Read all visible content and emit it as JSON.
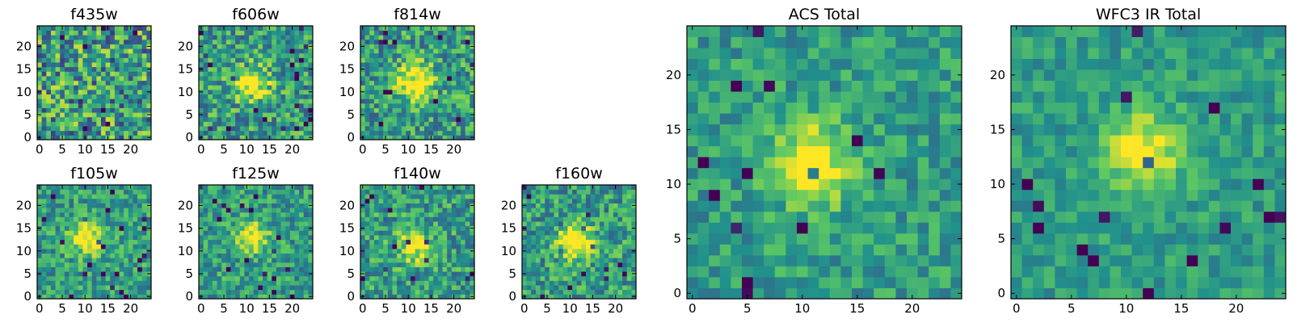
{
  "chart_data": [
    {
      "type": "heatmap",
      "title": "f435w",
      "source": "ACS",
      "xlim": [
        0,
        25
      ],
      "ylim": [
        0,
        25
      ],
      "xticks": [
        0,
        5,
        10,
        15,
        20
      ],
      "yticks": [
        0,
        5,
        10,
        15,
        20
      ],
      "tick_labels_x": [
        "0",
        "5",
        "10",
        "15",
        "20"
      ],
      "tick_labels_y": [
        "0",
        "5",
        "10",
        "15",
        "20"
      ],
      "colormap": "viridis",
      "source_center": [
        11,
        13
      ],
      "peak_level": 0.0,
      "noise_level": 0.75,
      "seed": 11
    },
    {
      "type": "heatmap",
      "title": "f606w",
      "source": "ACS",
      "xlim": [
        0,
        25
      ],
      "ylim": [
        0,
        25
      ],
      "xticks": [
        0,
        5,
        10,
        15,
        20
      ],
      "yticks": [
        0,
        5,
        10,
        15,
        20
      ],
      "tick_labels_x": [
        "0",
        "5",
        "10",
        "15",
        "20"
      ],
      "tick_labels_y": [
        "0",
        "5",
        "10",
        "15",
        "20"
      ],
      "colormap": "viridis",
      "source_center": [
        11.5,
        12.5
      ],
      "peak_level": 0.55,
      "noise_level": 0.55,
      "seed": 22
    },
    {
      "type": "heatmap",
      "title": "f814w",
      "source": "ACS",
      "xlim": [
        0,
        25
      ],
      "ylim": [
        0,
        25
      ],
      "xticks": [
        0,
        5,
        10,
        15,
        20
      ],
      "yticks": [
        0,
        5,
        10,
        15,
        20
      ],
      "tick_labels_x": [
        "0",
        "5",
        "10",
        "15",
        "20"
      ],
      "tick_labels_y": [
        "0",
        "5",
        "10",
        "15",
        "20"
      ],
      "colormap": "viridis",
      "source_center": [
        12,
        13
      ],
      "peak_level": 0.65,
      "noise_level": 0.55,
      "seed": 33
    },
    {
      "type": "heatmap",
      "title": "f105w",
      "source": "WFC3 IR",
      "xlim": [
        0,
        25
      ],
      "ylim": [
        0,
        25
      ],
      "xticks": [
        0,
        5,
        10,
        15,
        20
      ],
      "yticks": [
        0,
        5,
        10,
        15,
        20
      ],
      "tick_labels_x": [
        "0",
        "5",
        "10",
        "15",
        "20"
      ],
      "tick_labels_y": [
        "0",
        "5",
        "10",
        "15",
        "20"
      ],
      "colormap": "viridis",
      "source_center": [
        11,
        13.5
      ],
      "peak_level": 0.5,
      "noise_level": 0.45,
      "seed": 44
    },
    {
      "type": "heatmap",
      "title": "f125w",
      "source": "WFC3 IR",
      "xlim": [
        0,
        25
      ],
      "ylim": [
        0,
        25
      ],
      "xticks": [
        0,
        5,
        10,
        15,
        20
      ],
      "yticks": [
        0,
        5,
        10,
        15,
        20
      ],
      "tick_labels_x": [
        "0",
        "5",
        "10",
        "15",
        "20"
      ],
      "tick_labels_y": [
        "0",
        "5",
        "10",
        "15",
        "20"
      ],
      "colormap": "viridis",
      "source_center": [
        11.5,
        13.5
      ],
      "peak_level": 0.45,
      "noise_level": 0.45,
      "seed": 55
    },
    {
      "type": "heatmap",
      "title": "f140w",
      "source": "WFC3 IR",
      "xlim": [
        0,
        25
      ],
      "ylim": [
        0,
        25
      ],
      "xticks": [
        0,
        5,
        10,
        15,
        20
      ],
      "yticks": [
        0,
        5,
        10,
        15,
        20
      ],
      "tick_labels_x": [
        "0",
        "5",
        "10",
        "15",
        "20"
      ],
      "tick_labels_y": [
        "0",
        "5",
        "10",
        "15",
        "20"
      ],
      "colormap": "viridis",
      "source_center": [
        12,
        11.5
      ],
      "peak_level": 0.4,
      "noise_level": 0.5,
      "seed": 66
    },
    {
      "type": "heatmap",
      "title": "f160w",
      "source": "WFC3 IR",
      "xlim": [
        0,
        25
      ],
      "ylim": [
        0,
        25
      ],
      "xticks": [
        0,
        5,
        10,
        15,
        20
      ],
      "yticks": [
        0,
        5,
        10,
        15,
        20
      ],
      "tick_labels_x": [
        "0",
        "5",
        "10",
        "15",
        "20"
      ],
      "tick_labels_y": [
        "0",
        "5",
        "10",
        "15",
        "20"
      ],
      "colormap": "viridis",
      "source_center": [
        11.5,
        12.5
      ],
      "peak_level": 0.6,
      "noise_level": 0.5,
      "seed": 77
    },
    {
      "type": "heatmap",
      "title": "ACS Total",
      "source": "ACS",
      "xlim": [
        0,
        25
      ],
      "ylim": [
        0,
        25
      ],
      "xticks": [
        0,
        5,
        10,
        15,
        20
      ],
      "yticks": [
        0,
        5,
        10,
        15,
        20
      ],
      "tick_labels_x": [
        "0",
        "5",
        "10",
        "15",
        "20"
      ],
      "tick_labels_y": [
        "0",
        "5",
        "10",
        "15",
        "20"
      ],
      "colormap": "viridis",
      "source_center": [
        11.5,
        12.5
      ],
      "peak_level": 0.5,
      "noise_level": 0.35,
      "seed": 88
    },
    {
      "type": "heatmap",
      "title": "WFC3 IR Total",
      "source": "WFC3 IR",
      "xlim": [
        0,
        25
      ],
      "ylim": [
        0,
        25
      ],
      "xticks": [
        0,
        5,
        10,
        15,
        20
      ],
      "yticks": [
        0,
        5,
        10,
        15,
        20
      ],
      "tick_labels_x": [
        "0",
        "5",
        "10",
        "15",
        "20"
      ],
      "tick_labels_y": [
        "0",
        "5",
        "10",
        "15",
        "20"
      ],
      "colormap": "viridis",
      "source_center": [
        12,
        13.5
      ],
      "peak_level": 0.45,
      "noise_level": 0.28,
      "seed": 99
    }
  ],
  "colors": {
    "viridis_stops": [
      "#440154",
      "#3b528b",
      "#21918c",
      "#5ec962",
      "#fde725"
    ]
  }
}
